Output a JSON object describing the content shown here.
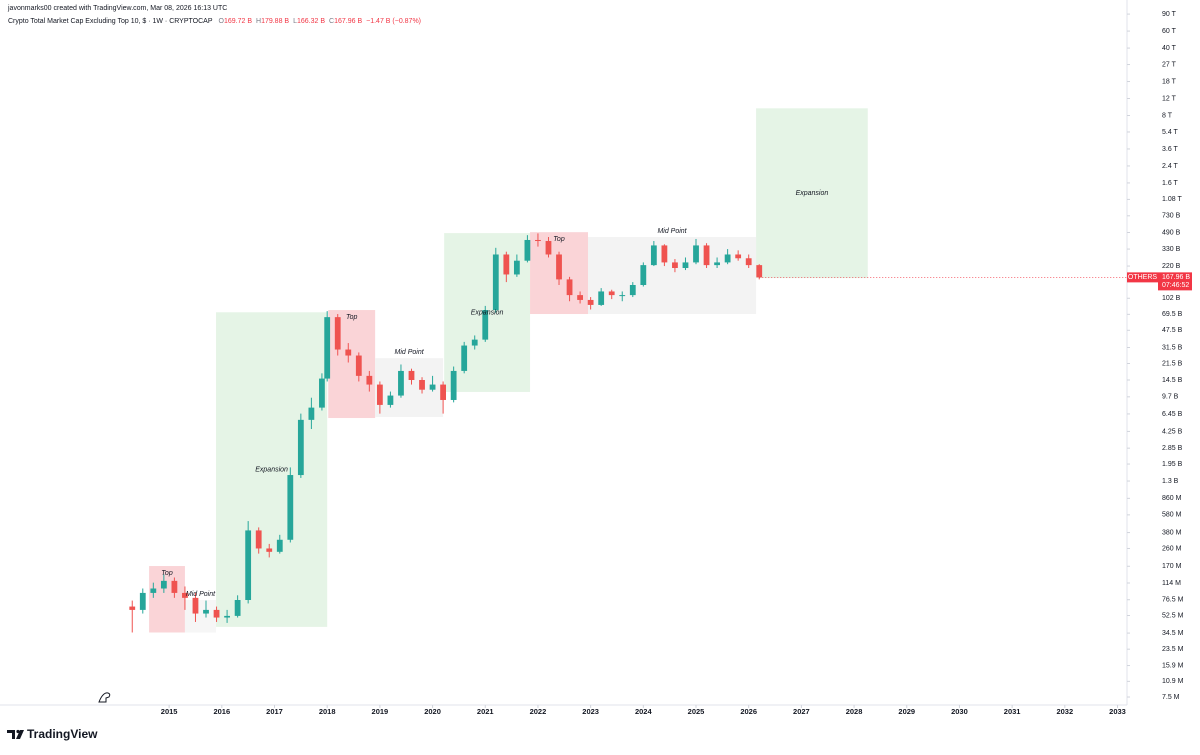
{
  "header": {
    "attribution": "javonmarks00 created with TradingView.com, Mar 08, 2026 16:13 UTC",
    "symbol": "Crypto Total Market Cap Excluding Top 10, $ · 1W · CRYPTOCAP",
    "ohlc": [
      {
        "key": "O",
        "value": "169.72 B"
      },
      {
        "key": "H",
        "value": "179.88 B"
      },
      {
        "key": "L",
        "value": "166.32 B"
      },
      {
        "key": "C",
        "value": "167.96 B"
      }
    ],
    "change": "−1.47 B (−0.87%)"
  },
  "chart_data": {
    "type": "candlestick",
    "log_scale": true,
    "up_color": "#26a69a",
    "down_color": "#ef5350",
    "x": [
      2014.3,
      2014.5,
      2014.7,
      2014.9,
      2015.1,
      2015.3,
      2015.5,
      2015.7,
      2015.9,
      2016.1,
      2016.3,
      2016.5,
      2016.7,
      2016.9,
      2017.1,
      2017.3,
      2017.5,
      2017.7,
      2017.9,
      2018.0,
      2018.2,
      2018.4,
      2018.6,
      2018.8,
      2019.0,
      2019.2,
      2019.4,
      2019.6,
      2019.8,
      2020.0,
      2020.2,
      2020.4,
      2020.6,
      2020.8,
      2021.0,
      2021.2,
      2021.4,
      2021.6,
      2021.8,
      2022.0,
      2022.2,
      2022.4,
      2022.6,
      2022.8,
      2023.0,
      2023.2,
      2023.4,
      2023.6,
      2023.8,
      2024.0,
      2024.2,
      2024.4,
      2024.6,
      2024.8,
      2025.0,
      2025.2,
      2025.4,
      2025.6,
      2025.8,
      2026.0,
      2026.2
    ],
    "open": [
      65000000.0,
      60000000.0,
      90000000.0,
      100000000.0,
      120000000.0,
      90000000.0,
      80000000.0,
      55000000.0,
      60000000.0,
      50000000.0,
      52000000.0,
      76000000.0,
      400000000.0,
      260000000.0,
      240000000.0,
      320000000.0,
      1500000000.0,
      5600000000.0,
      7500000000.0,
      15000000000.0,
      65000000000.0,
      30000000000.0,
      26000000000.0,
      16000000000.0,
      13000000000.0,
      8000000000.0,
      10000000000.0,
      18000000000.0,
      14500000000.0,
      11500000000.0,
      13000000000.0,
      9000000000.0,
      18000000000.0,
      33000000000.0,
      38000000000.0,
      77000000000.0,
      290000000000.0,
      180000000000.0,
      250000000000.0,
      410000000000.0,
      400000000000.0,
      290000000000.0,
      160000000000.0,
      110000000000.0,
      98000000000.0,
      87000000000.0,
      120000000000.0,
      110000000000.0,
      110000000000.0,
      140000000000.0,
      225000000000.0,
      360000000000.0,
      240000000000.0,
      210000000000.0,
      240000000000.0,
      360000000000.0,
      225000000000.0,
      240000000000.0,
      290000000000.0,
      265000000000.0,
      225000000000.0
    ],
    "high": [
      75000000.0,
      100000000.0,
      115000000.0,
      140000000.0,
      130000000.0,
      105000000.0,
      90000000.0,
      75000000.0,
      65000000.0,
      60000000.0,
      85000000.0,
      500000000.0,
      430000000.0,
      290000000.0,
      360000000.0,
      1800000000.0,
      6500000000.0,
      9500000000.0,
      17000000000.0,
      75000000000.0,
      70000000000.0,
      35000000000.0,
      28000000000.0,
      18000000000.0,
      14000000000.0,
      11000000000.0,
      21000000000.0,
      19000000000.0,
      15500000000.0,
      16000000000.0,
      14000000000.0,
      20000000000.0,
      36000000000.0,
      42000000000.0,
      85000000000.0,
      340000000000.0,
      310000000000.0,
      290000000000.0,
      460000000000.0,
      480000000000.0,
      440000000000.0,
      310000000000.0,
      170000000000.0,
      120000000000.0,
      105000000000.0,
      130000000000.0,
      125000000000.0,
      120000000000.0,
      150000000000.0,
      240000000000.0,
      400000000000.0,
      370000000000.0,
      260000000000.0,
      270000000000.0,
      420000000000.0,
      380000000000.0,
      270000000000.0,
      330000000000.0,
      320000000000.0,
      290000000000.0,
      230000000000.0
    ],
    "low": [
      35000000.0,
      55000000.0,
      80000000.0,
      90000000.0,
      80000000.0,
      60000000.0,
      45000000.0,
      50000000.0,
      45000000.0,
      44000000.0,
      50000000.0,
      70000000.0,
      230000000.0,
      210000000.0,
      230000000.0,
      300000000.0,
      1400000000.0,
      4500000000.0,
      7000000000.0,
      14000000000.0,
      26000000000.0,
      22000000000.0,
      14000000000.0,
      11000000000.0,
      6500000000.0,
      7500000000.0,
      9500000000.0,
      13000000000.0,
      10500000000.0,
      11000000000.0,
      6500000000.0,
      8500000000.0,
      17000000000.0,
      30000000000.0,
      36000000000.0,
      72000000000.0,
      150000000000.0,
      170000000000.0,
      240000000000.0,
      350000000000.0,
      270000000000.0,
      140000000000.0,
      95000000000.0,
      90000000000.0,
      78000000000.0,
      85000000000.0,
      100000000000.0,
      95000000000.0,
      105000000000.0,
      135000000000.0,
      220000000000.0,
      220000000000.0,
      190000000000.0,
      200000000000.0,
      230000000000.0,
      210000000000.0,
      210000000000.0,
      230000000000.0,
      250000000000.0,
      210000000000.0,
      160000000000.0
    ],
    "close": [
      60000000.0,
      90000000.0,
      100000000.0,
      120000000.0,
      90000000.0,
      80000000.0,
      55000000.0,
      60000000.0,
      50000000.0,
      52000000.0,
      76000000.0,
      400000000.0,
      260000000.0,
      240000000.0,
      320000000.0,
      1500000000.0,
      5600000000.0,
      7500000000.0,
      15000000000.0,
      65000000000.0,
      30000000000.0,
      26000000000.0,
      16000000000.0,
      13000000000.0,
      8000000000.0,
      10000000000.0,
      18000000000.0,
      14500000000.0,
      11500000000.0,
      13000000000.0,
      9000000000.0,
      18000000000.0,
      33000000000.0,
      38000000000.0,
      77000000000.0,
      290000000000.0,
      180000000000.0,
      250000000000.0,
      410000000000.0,
      400000000000.0,
      290000000000.0,
      160000000000.0,
      110000000000.0,
      98000000000.0,
      87000000000.0,
      120000000000.0,
      110000000000.0,
      110000000000.0,
      140000000000.0,
      225000000000.0,
      360000000000.0,
      240000000000.0,
      210000000000.0,
      240000000000.0,
      360000000000.0,
      225000000000.0,
      240000000000.0,
      290000000000.0,
      265000000000.0,
      225000000000.0,
      167960000000.0
    ],
    "xlim": [
      2011.79,
      2033.18
    ],
    "ylim": [
      6200000.0,
      126000000000000.0
    ],
    "xticks": [
      2015,
      2016,
      2017,
      2018,
      2019,
      2020,
      2021,
      2022,
      2023,
      2024,
      2025,
      2026,
      2027,
      2028,
      2029,
      2030,
      2031,
      2032,
      2033
    ],
    "yticks": [
      {
        "value": 90000000000000.0,
        "label": "90 T"
      },
      {
        "value": 60000000000000.0,
        "label": "60 T"
      },
      {
        "value": 40000000000000.0,
        "label": "40 T"
      },
      {
        "value": 27000000000000.0,
        "label": "27 T"
      },
      {
        "value": 18000000000000.0,
        "label": "18 T"
      },
      {
        "value": 12000000000000.0,
        "label": "12 T"
      },
      {
        "value": 8000000000000.0,
        "label": "8 T"
      },
      {
        "value": 5400000000000.0,
        "label": "5.4 T"
      },
      {
        "value": 3600000000000.0,
        "label": "3.6 T"
      },
      {
        "value": 2400000000000.0,
        "label": "2.4 T"
      },
      {
        "value": 1600000000000.0,
        "label": "1.6 T"
      },
      {
        "value": 1080000000000.0,
        "label": "1.08 T"
      },
      {
        "value": 730000000000.0,
        "label": "730 B"
      },
      {
        "value": 490000000000.0,
        "label": "490 B"
      },
      {
        "value": 330000000000.0,
        "label": "330 B"
      },
      {
        "value": 220000000000.0,
        "label": "220 B"
      },
      {
        "value": 102000000000.0,
        "label": "102 B"
      },
      {
        "value": 69500000000.0,
        "label": "69.5 B"
      },
      {
        "value": 47500000000.0,
        "label": "47.5 B"
      },
      {
        "value": 31500000000.0,
        "label": "31.5 B"
      },
      {
        "value": 21500000000.0,
        "label": "21.5 B"
      },
      {
        "value": 14500000000.0,
        "label": "14.5 B"
      },
      {
        "value": 9700000000.0,
        "label": "9.7 B"
      },
      {
        "value": 6450000000.0,
        "label": "6.45 B"
      },
      {
        "value": 4250000000.0,
        "label": "4.25 B"
      },
      {
        "value": 2850000000.0,
        "label": "2.85 B"
      },
      {
        "value": 1950000000.0,
        "label": "1.95 B"
      },
      {
        "value": 1300000000.0,
        "label": "1.3 B"
      },
      {
        "value": 860000000.0,
        "label": "860 M"
      },
      {
        "value": 580000000.0,
        "label": "580 M"
      },
      {
        "value": 380000000.0,
        "label": "380 M"
      },
      {
        "value": 260000000.0,
        "label": "260 M"
      },
      {
        "value": 170000000.0,
        "label": "170 M"
      },
      {
        "value": 114000000.0,
        "label": "114 M"
      },
      {
        "value": 76500000.0,
        "label": "76.5 M"
      },
      {
        "value": 52500000.0,
        "label": "52.5 M"
      },
      {
        "value": 34500000.0,
        "label": "34.5 M"
      },
      {
        "value": 23500000.0,
        "label": "23.5 M"
      },
      {
        "value": 15900000.0,
        "label": "15.9 M"
      },
      {
        "value": 10900000.0,
        "label": "10.9 M"
      },
      {
        "value": 7500000.0,
        "label": "7.5 M"
      }
    ],
    "annotations": [
      {
        "text": "Top",
        "color": "#fad4d7",
        "x": [
          2014.62,
          2015.3
        ],
        "y": [
          35000000.0,
          171000000.0
        ]
      },
      {
        "text": "Mid Point",
        "color": "#f6f6f6",
        "x": [
          2015.3,
          2015.89
        ],
        "y": [
          35000000.0,
          76000000.0
        ]
      },
      {
        "text": "Expansion",
        "color": "#e5f4e6",
        "x": [
          2015.89,
          2018.0
        ],
        "y": [
          40000000.0,
          73000000000.0
        ]
      },
      {
        "text": "Top",
        "color": "#fad4d7",
        "x": [
          2018.02,
          2018.91
        ],
        "y": [
          5850000000.0,
          77000000000.0
        ]
      },
      {
        "text": "Mid Point",
        "color": "#f3f3f3",
        "x": [
          2018.91,
          2020.2
        ],
        "y": [
          6000000000.0,
          24400000000.0
        ]
      },
      {
        "text": "Expansion",
        "color": "#e5f4e6",
        "x": [
          2020.22,
          2021.85
        ],
        "y": [
          10900000000.0,
          483000000000.0
        ]
      },
      {
        "text": "Top",
        "color": "#fad4d7",
        "x": [
          2021.85,
          2022.95
        ],
        "y": [
          70000000000.0,
          494000000000.0
        ]
      },
      {
        "text": "Mid Point",
        "color": "#f3f3f3",
        "x": [
          2022.95,
          2026.14
        ],
        "y": [
          70000000000.0,
          440000000000.0
        ]
      },
      {
        "text": "Expansion",
        "color": "#e5f4e6",
        "x": [
          2026.14,
          2028.26
        ],
        "y": [
          165000000000.0,
          9500000000000.0
        ]
      }
    ],
    "price_tag": {
      "symbol": "OTHERS",
      "price": "167.96 B",
      "countdown": "07:46:52",
      "color": "#f23645"
    }
  },
  "footer": {
    "logo": "TradingView"
  }
}
